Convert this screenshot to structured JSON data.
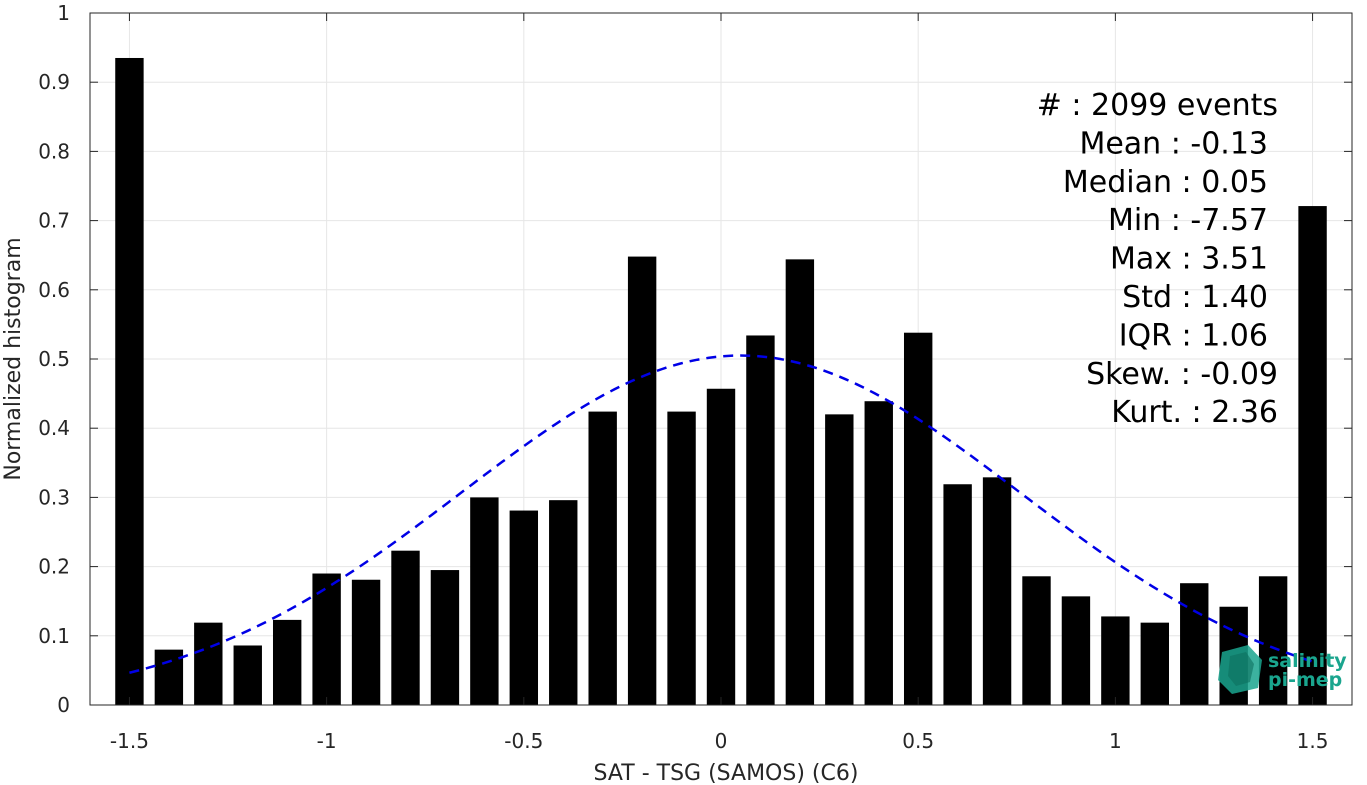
{
  "chart_data": {
    "type": "bar",
    "xlabel": "SAT - TSG (SAMOS) (C6)",
    "ylabel": "Normalized histogram",
    "xlim": [
      -1.6,
      1.6
    ],
    "ylim": [
      0,
      1
    ],
    "x_ticks": [
      "-1.5",
      "-1",
      "-0.5",
      "0",
      "0.5",
      "1",
      "1.5"
    ],
    "x_tick_values": [
      -1.5,
      -1,
      -0.5,
      0,
      0.5,
      1,
      1.5
    ],
    "y_ticks": [
      "0",
      "0.1",
      "0.2",
      "0.3",
      "0.4",
      "0.5",
      "0.6",
      "0.7",
      "0.8",
      "0.9",
      "1"
    ],
    "y_tick_values": [
      0,
      0.1,
      0.2,
      0.3,
      0.4,
      0.5,
      0.6,
      0.7,
      0.8,
      0.9,
      1
    ],
    "grid": true,
    "bar_width": 0.072,
    "bars": {
      "color": "#000000",
      "x": [
        -1.5,
        -1.4,
        -1.3,
        -1.2,
        -1.1,
        -1.0,
        -0.9,
        -0.8,
        -0.7,
        -0.6,
        -0.5,
        -0.4,
        -0.3,
        -0.2,
        -0.1,
        0.0,
        0.1,
        0.2,
        0.3,
        0.4,
        0.5,
        0.6,
        0.7,
        0.8,
        0.9,
        1.0,
        1.1,
        1.2,
        1.3,
        1.4,
        1.5
      ],
      "values": [
        0.935,
        0.08,
        0.119,
        0.086,
        0.123,
        0.19,
        0.181,
        0.223,
        0.195,
        0.3,
        0.281,
        0.296,
        0.424,
        0.648,
        0.424,
        0.457,
        0.534,
        0.644,
        0.42,
        0.439,
        0.538,
        0.319,
        0.329,
        0.186,
        0.157,
        0.128,
        0.119,
        0.176,
        0.142,
        0.186,
        0.721
      ]
    },
    "fit_curve": {
      "style": "dashed",
      "color": "#0000e6",
      "mean": 0.05,
      "amplitude": 0.505,
      "sigma": 0.71,
      "x_range": [
        -1.5,
        1.5
      ]
    },
    "stats_text": [
      "#  : 2099 events",
      "Mean : -0.13",
      "Median : 0.05",
      "Min : -7.57",
      "Max : 3.51",
      "Std : 1.40",
      "IQR : 1.06",
      "Skew. : -0.09",
      "Kurt. : 2.36"
    ],
    "logo": {
      "line1": "salinity",
      "line2": "pi-mep",
      "color": "#1aa58e"
    }
  }
}
